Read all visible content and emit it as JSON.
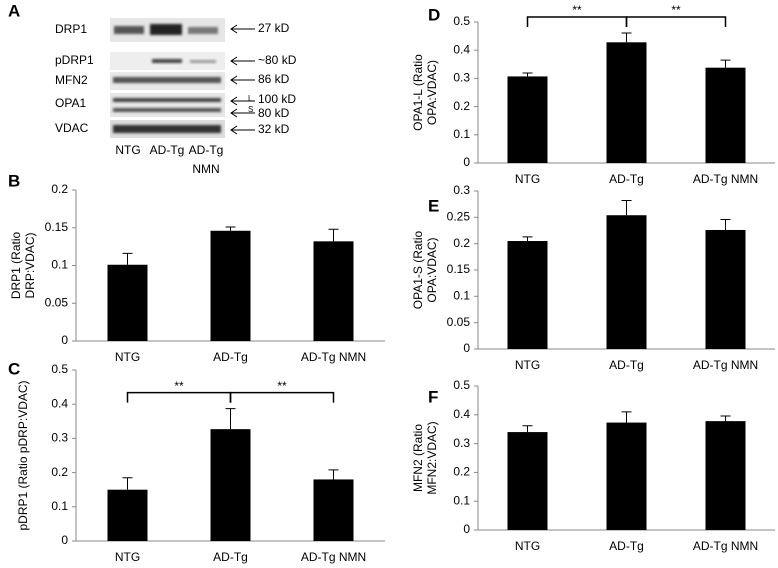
{
  "blot": {
    "panel": "A",
    "rows": [
      "DRP1",
      "pDRP1",
      "MFN2",
      "OPA1",
      "VDAC"
    ],
    "markers": [
      "27 kD",
      "~80 kD",
      "86 kD",
      "100 kD",
      "80 kD",
      "32 kD"
    ],
    "isoforms": [
      "L",
      "S"
    ],
    "lanes": [
      [
        "NTG"
      ],
      [
        "AD-Tg"
      ],
      [
        "AD-Tg",
        "NMN"
      ]
    ]
  },
  "chart_data": [
    {
      "type": "bar",
      "panel": "B",
      "ylabel": [
        "DRP1 (Ratio",
        "DRP:VDAC)"
      ],
      "categories": [
        "NTG",
        "AD-Tg",
        "AD-Tg NMN"
      ],
      "values": [
        0.101,
        0.146,
        0.132
      ],
      "errors": [
        0.015,
        0.005,
        0.016
      ],
      "color": "#000000",
      "ylim": [
        0,
        0.2
      ],
      "yticks": [
        0,
        0.05,
        0.1,
        0.15,
        0.2
      ],
      "annotations": []
    },
    {
      "type": "bar",
      "panel": "C",
      "ylabel": [
        "pDRP1 (Ratio pDRP:VDAC)"
      ],
      "categories": [
        "NTG",
        "AD-Tg",
        "AD-Tg NMN"
      ],
      "values": [
        0.15,
        0.327,
        0.18
      ],
      "errors": [
        0.035,
        0.06,
        0.028
      ],
      "color": "#000000",
      "ylim": [
        0,
        0.5
      ],
      "yticks": [
        0,
        0.1,
        0.2,
        0.3,
        0.4,
        0.5
      ],
      "annotations": [
        "**",
        "**"
      ]
    },
    {
      "type": "bar",
      "panel": "D",
      "ylabel": [
        "OPA1-L (Ratio",
        "OPA:VDAC)"
      ],
      "categories": [
        "NTG",
        "AD-Tg",
        "AD-Tg NMN"
      ],
      "values": [
        0.307,
        0.428,
        0.338
      ],
      "errors": [
        0.012,
        0.033,
        0.027
      ],
      "color": "#000000",
      "ylim": [
        0,
        0.5
      ],
      "yticks": [
        0,
        0.1,
        0.2,
        0.3,
        0.4,
        0.5
      ],
      "annotations": [
        "**",
        "**"
      ]
    },
    {
      "type": "bar",
      "panel": "E",
      "ylabel": [
        "OPA1-S (Ratio",
        "OPA:VDAC)"
      ],
      "categories": [
        "NTG",
        "AD-Tg",
        "AD-Tg NMN"
      ],
      "values": [
        0.205,
        0.254,
        0.226
      ],
      "errors": [
        0.008,
        0.028,
        0.02
      ],
      "color": "#000000",
      "ylim": [
        0,
        0.3
      ],
      "yticks": [
        0,
        0.05,
        0.1,
        0.15,
        0.2,
        0.25,
        0.3
      ],
      "annotations": []
    },
    {
      "type": "bar",
      "panel": "F",
      "ylabel": [
        "MFN2 (Ratio",
        "MFN2:VDAC)"
      ],
      "categories": [
        "NTG",
        "AD-Tg",
        "AD-Tg NMN"
      ],
      "values": [
        0.34,
        0.373,
        0.378
      ],
      "errors": [
        0.022,
        0.037,
        0.018
      ],
      "color": "#000000",
      "ylim": [
        0,
        0.5
      ],
      "yticks": [
        0,
        0.1,
        0.2,
        0.3,
        0.4,
        0.5
      ],
      "annotations": []
    }
  ]
}
